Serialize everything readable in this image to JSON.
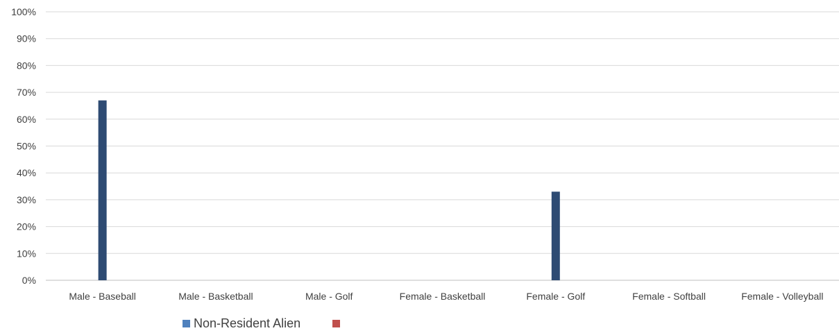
{
  "chart_data": {
    "type": "bar",
    "categories": [
      "Male - Baseball",
      "Male - Basketball",
      "Male - Golf",
      "Female - Basketball",
      "Female - Golf",
      "Female - Softball",
      "Female - Volleyball"
    ],
    "series": [
      {
        "name": "",
        "color": "#2e4b73",
        "values": [
          67,
          0,
          0,
          0,
          33,
          0,
          0
        ]
      }
    ],
    "ylim": [
      0,
      100
    ],
    "yticks": [
      "0%",
      "10%",
      "20%",
      "30%",
      "40%",
      "50%",
      "60%",
      "70%",
      "80%",
      "90%",
      "100%"
    ],
    "grid": true,
    "legend": {
      "placement": "bottom",
      "entries": [
        {
          "label": "Non-Resident Alien",
          "color": "#4f81bd"
        },
        {
          "label": "",
          "color": "#c0504d"
        }
      ]
    }
  }
}
